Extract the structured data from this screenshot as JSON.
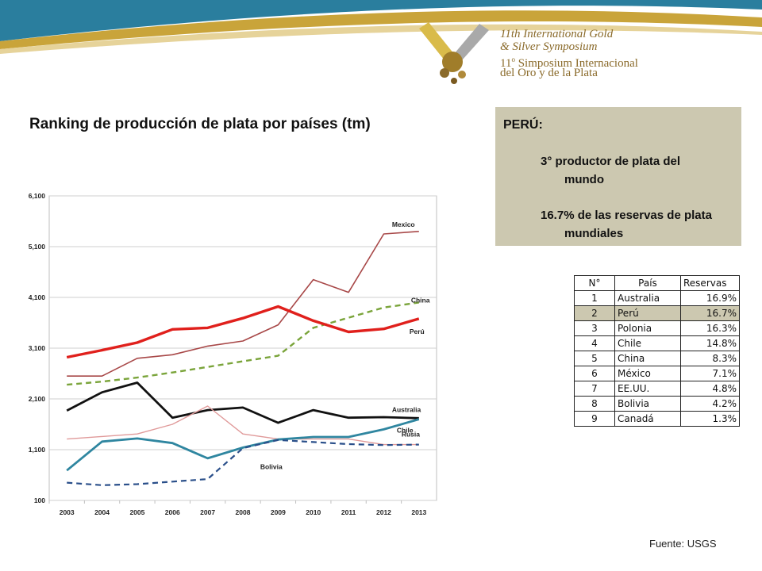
{
  "logo": {
    "line1": "11th International Gold",
    "line2": "& Silver Symposium",
    "line3_pre": "11",
    "line3_sup": "o",
    "line3_post": " Simposium Internacional",
    "line4": "del Oro y de la Plata",
    "colors": {
      "gold": "#c9a43a",
      "teal": "#2a7e9e"
    }
  },
  "chart_title": "Ranking de producción de plata por países (tm)",
  "info_box": {
    "heading": "PERÚ:",
    "item1_line1": "3° productor de plata del",
    "item1_line2": "mundo",
    "item2_line1": "16.7% de las reservas de plata",
    "item2_line2": "mundiales"
  },
  "table": {
    "headers": [
      "N°",
      "País",
      "Reservas"
    ],
    "rows": [
      [
        "1",
        "Australia",
        "16.9%"
      ],
      [
        "2",
        "Perú",
        "16.7%"
      ],
      [
        "3",
        "Polonia",
        "16.3%"
      ],
      [
        "4",
        "Chile",
        "14.8%"
      ],
      [
        "5",
        "China",
        "8.3%"
      ],
      [
        "6",
        "México",
        "7.1%"
      ],
      [
        "7",
        "EE.UU.",
        "4.8%"
      ],
      [
        "8",
        "Bolivia",
        "4.2%"
      ],
      [
        "9",
        "Canadá",
        "1.3%"
      ]
    ],
    "highlight_row": 1
  },
  "source": "Fuente: USGS",
  "chart_data": {
    "type": "line",
    "title": "Ranking de producción de plata por países (tm)",
    "xlabel": "",
    "ylabel": "",
    "x": [
      "2003",
      "2004",
      "2005",
      "2006",
      "2007",
      "2008",
      "2009",
      "2010",
      "2011",
      "2012",
      "2013"
    ],
    "y_ticks": [
      "6,100",
      "5,100",
      "4,100",
      "3,100",
      "2,100",
      "1,100",
      "100"
    ],
    "y_tick_values": [
      6100,
      5100,
      4100,
      3100,
      2100,
      1100,
      100
    ],
    "ylim": [
      100,
      6100
    ],
    "grid": "horizontal",
    "legend": "inline labels at line ends",
    "series": [
      {
        "name": "Mexico",
        "color": "#a84848",
        "dashed": false,
        "width": 1.6,
        "values": [
          2550,
          2550,
          2900,
          2970,
          3140,
          3240,
          3560,
          4450,
          4200,
          5350,
          5400
        ]
      },
      {
        "name": "China",
        "color": "#7aa43a",
        "dashed": true,
        "width": 2.4,
        "values": [
          2380,
          2440,
          2520,
          2620,
          2730,
          2840,
          2950,
          3500,
          3700,
          3900,
          4000
        ]
      },
      {
        "name": "Perú",
        "color": "#e0201c",
        "dashed": false,
        "width": 3.4,
        "values": [
          2920,
          3060,
          3210,
          3470,
          3500,
          3690,
          3920,
          3640,
          3420,
          3480,
          3680
        ]
      },
      {
        "name": "Australia",
        "color": "#111111",
        "dashed": false,
        "width": 2.8,
        "values": [
          1870,
          2230,
          2420,
          1730,
          1880,
          1930,
          1630,
          1880,
          1730,
          1740,
          1720
        ]
      },
      {
        "name": "Rusia",
        "color": "#e09a9a",
        "dashed": false,
        "width": 1.4,
        "values": [
          1310,
          1360,
          1410,
          1600,
          1960,
          1410,
          1310,
          1310,
          1310,
          1200,
          1200
        ]
      },
      {
        "name": "Chile",
        "color": "#2f86a0",
        "dashed": false,
        "width": 2.8,
        "values": [
          690,
          1260,
          1320,
          1230,
          930,
          1140,
          1300,
          1350,
          1350,
          1500,
          1700
        ]
      },
      {
        "name": "Bolivia",
        "color": "#2a4f8a",
        "dashed": true,
        "width": 2.2,
        "values": [
          450,
          400,
          420,
          470,
          520,
          1130,
          1290,
          1250,
          1210,
          1190,
          1200
        ]
      }
    ],
    "series_labels": {
      "Mexico": "Mexico",
      "China": "China",
      "Perú": "Perú",
      "Australia": "Australia",
      "Rusia": "Rusia",
      "Chile": "Chile",
      "Bolivia": "Bolivia"
    }
  }
}
